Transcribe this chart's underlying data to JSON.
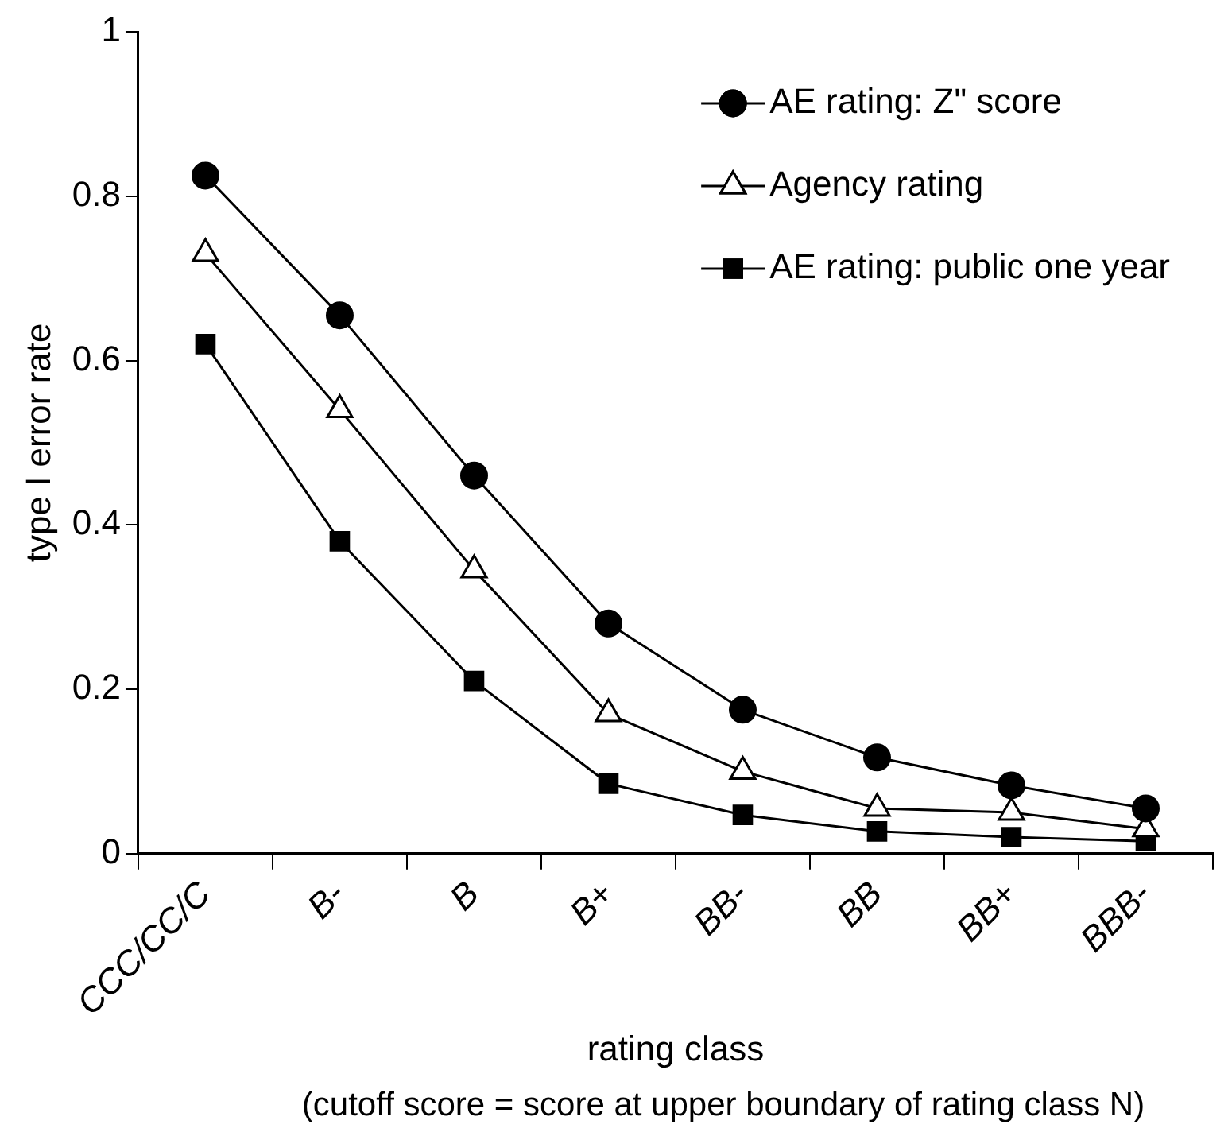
{
  "chart_data": {
    "type": "line",
    "ylabel": "type I error rate",
    "xlabel": "rating class",
    "annotations": [
      "(cutoff score = score at upper boundary of rating class N)"
    ],
    "categories": [
      "CCC/CC/C",
      "B-",
      "B",
      "B+",
      "BB-",
      "BB",
      "BB+",
      "BBB-"
    ],
    "ylim": [
      0,
      1
    ],
    "yticks": [
      0,
      0.2,
      0.4,
      0.6,
      0.8,
      1
    ],
    "legend": "top right",
    "line_style": "solid",
    "series": [
      {
        "name": "AE rating: Z\" score",
        "color": "#000000",
        "marker": "circle",
        "values": [
          0.825,
          0.655,
          0.46,
          0.28,
          0.175,
          0.117,
          0.083,
          0.055
        ]
      },
      {
        "name": "Agency rating",
        "color": "#000000",
        "marker": "triangle",
        "values": [
          0.73,
          0.54,
          0.345,
          0.17,
          0.1,
          0.055,
          0.05,
          0.03
        ]
      },
      {
        "name": "AE rating: public one year",
        "color": "#000000",
        "marker": "square",
        "values": [
          0.62,
          0.38,
          0.21,
          0.085,
          0.047,
          0.027,
          0.02,
          0.015
        ]
      }
    ]
  }
}
